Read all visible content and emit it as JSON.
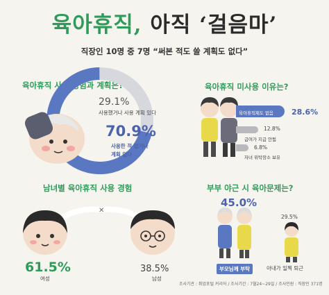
{
  "header": {
    "title_green": "육아휴직,",
    "title_dark": "아직 ‘걸음마’",
    "subtitle": "직장인 10명 중 7명 “써본 적도 쓸 계획도 없다”"
  },
  "experience": {
    "title": "육아휴직 사용 경험과 계획은?",
    "items": [
      {
        "pct": "29.1%",
        "label_line1": "사용했거나 사용 계획 있다",
        "label_line2": ""
      },
      {
        "pct": "70.9%",
        "label_line1": "사용한 적 없거나",
        "label_line2": "계획 없다"
      }
    ],
    "colors": {
      "primary": "#5a77c1",
      "secondary": "#d6d8de"
    }
  },
  "reasons": {
    "title": "육아휴직 미사용 이유는?",
    "items": [
      {
        "pct": "28.6%",
        "label": "육아휴직제도 없음",
        "value": 28.6
      },
      {
        "pct": "12.8%",
        "label": "급여가 지급 안됨",
        "value": 12.8
      },
      {
        "pct": "6.8%",
        "label": "자녀 위탁장소 보유",
        "value": 6.8
      }
    ],
    "colors": {
      "bar": "#5a77c1",
      "bar_muted": "#b9b9bd"
    }
  },
  "gender": {
    "title": "남녀별 육아휴직 사용 경험",
    "female": {
      "pct": "61.5%",
      "label": "여성"
    },
    "male": {
      "pct": "38.5%",
      "label": "남성"
    },
    "colors": {
      "female": "#2f9b5b",
      "male": "#555555"
    }
  },
  "overtime": {
    "title": "부부 야근 시 육아문제는?",
    "items": [
      {
        "pct": "45.0%",
        "label": "부모님께 부탁"
      },
      {
        "pct": "29.5%",
        "label": "아내가 일찍 퇴근"
      }
    ]
  },
  "footer": "조사기관 : 취업포털 커리어 / 조사기간 : 7월24~29일 / 조사인원 : 직장인 371명"
}
